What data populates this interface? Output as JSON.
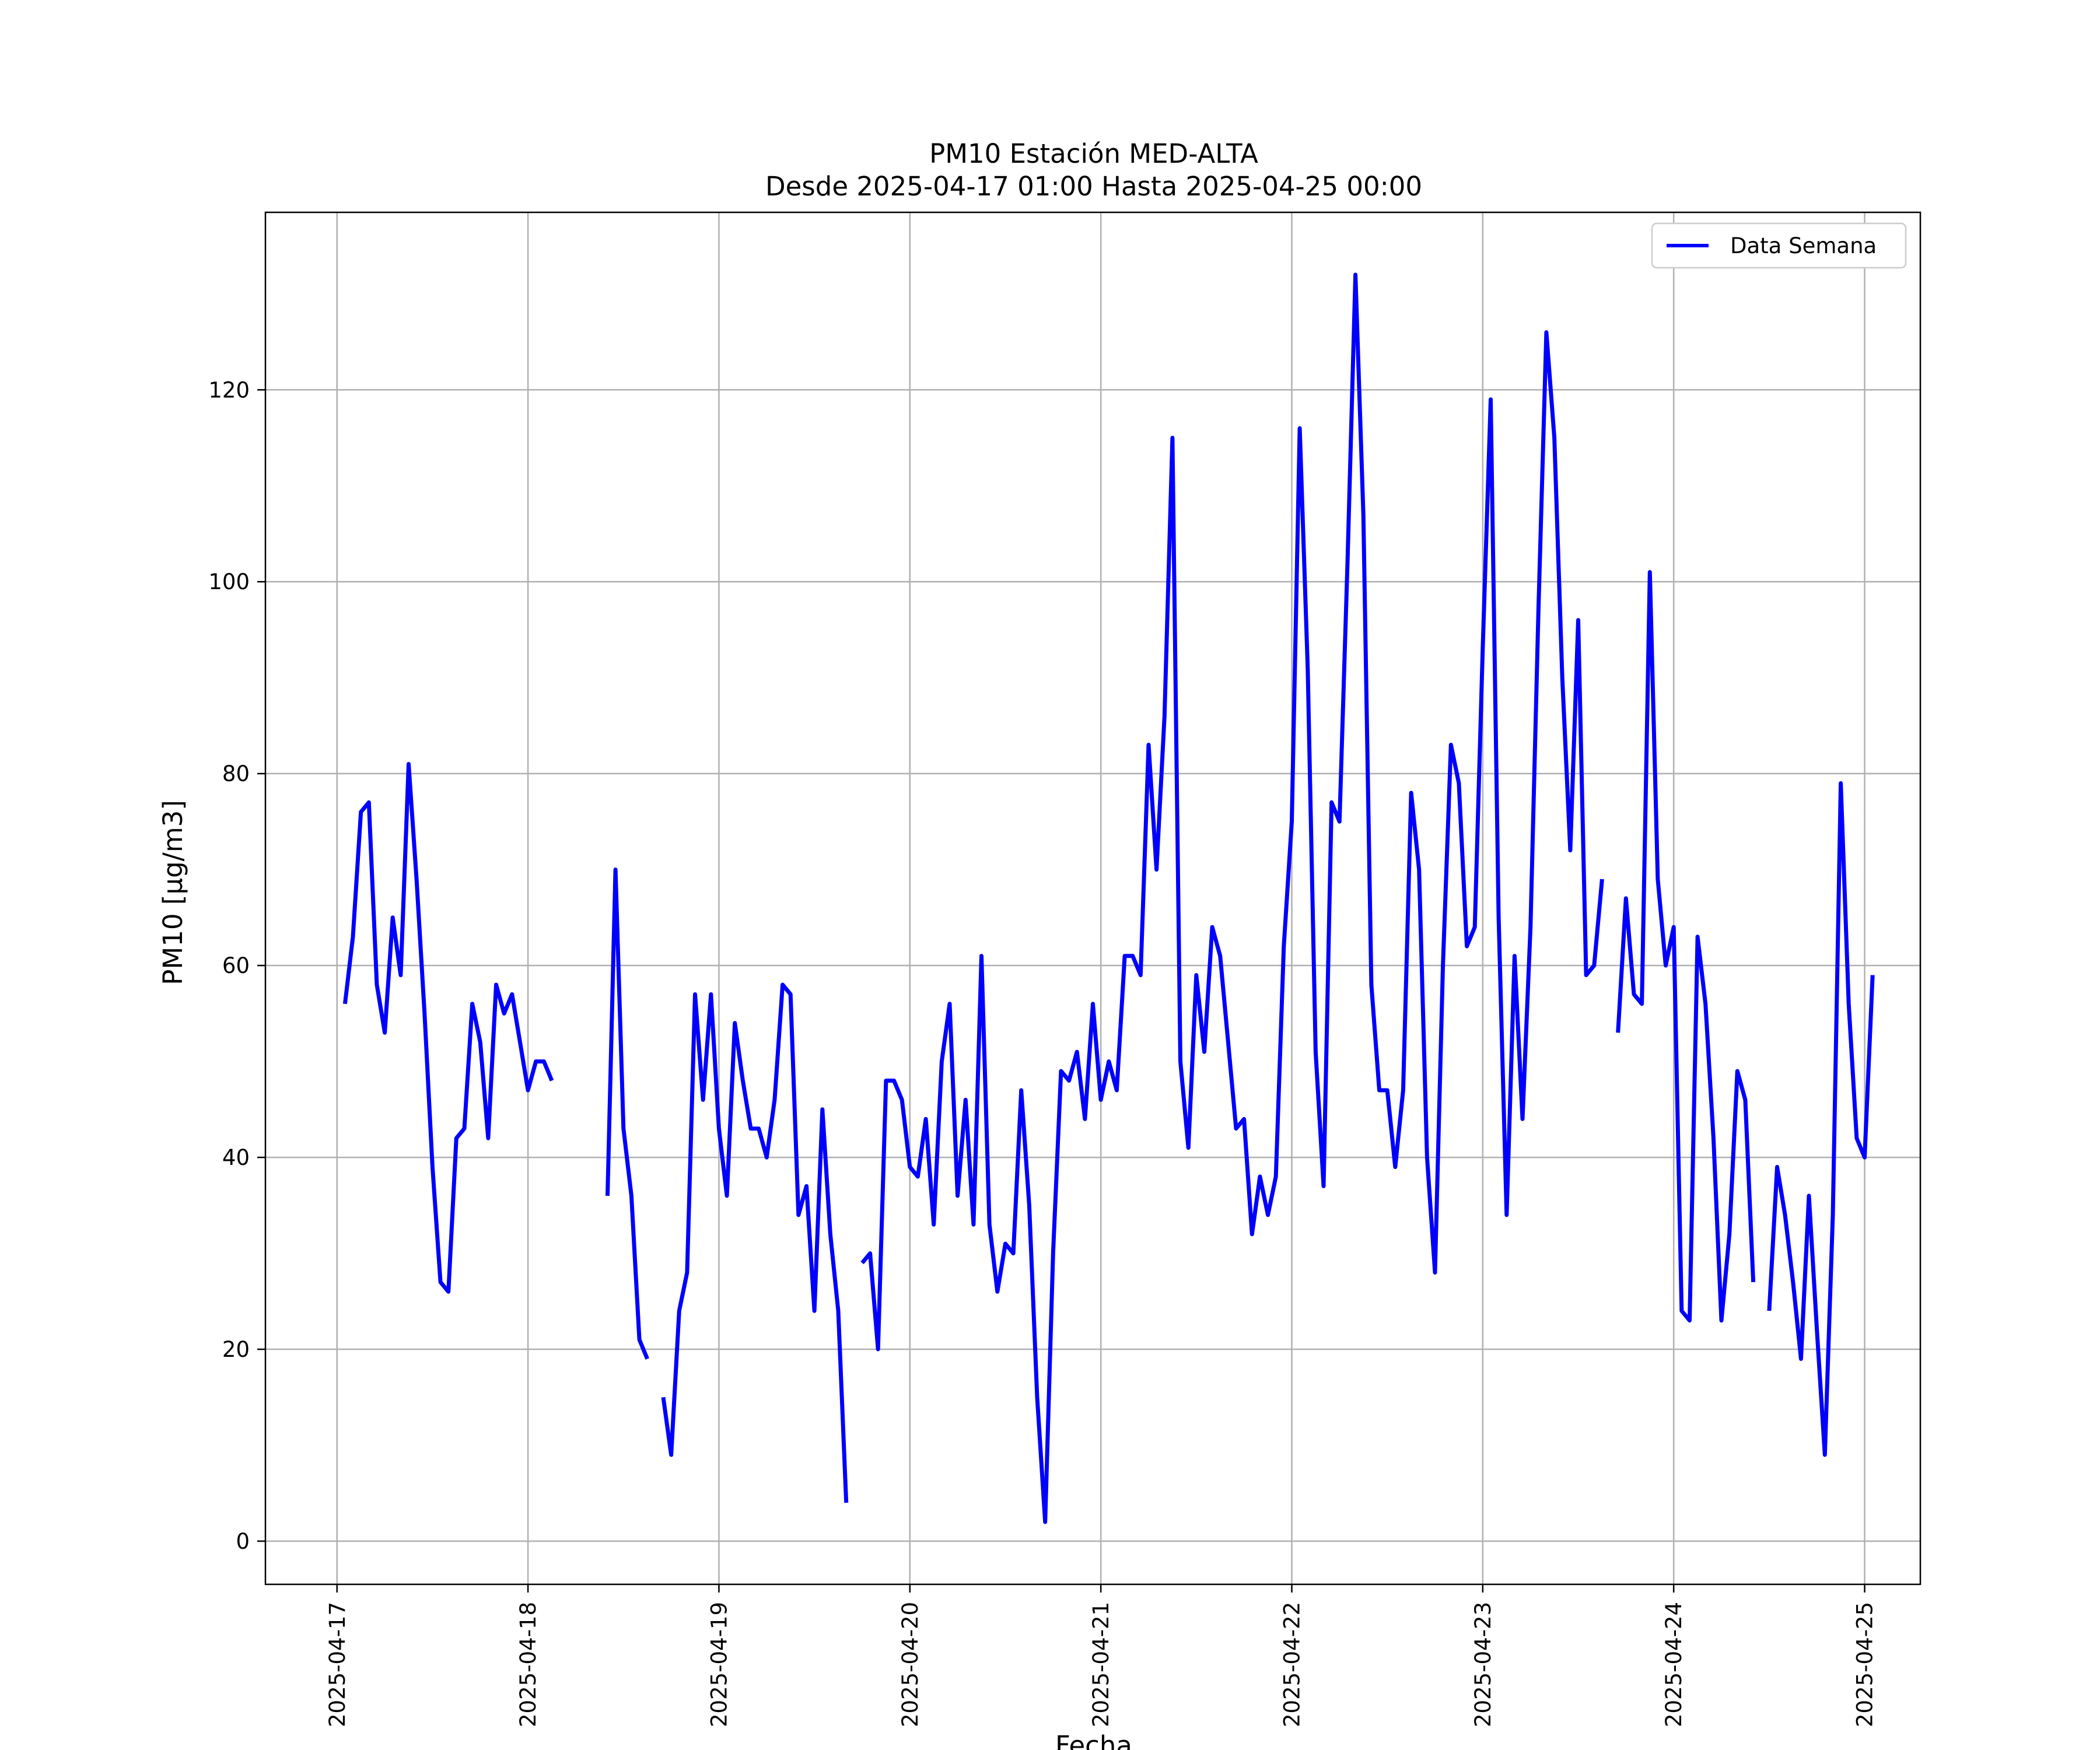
{
  "chart_data": {
    "type": "line",
    "title": "PM10 Estación MED-ALTA",
    "subtitle": "Desde 2025-04-17 01:00 Hasta 2025-04-25 00:00",
    "xlabel": "Fecha",
    "ylabel": "PM10 [μg/m3]",
    "grid": true,
    "legend_position": "top-right",
    "xlim": [
      "2025-04-16 15:00",
      "2025-04-25 07:00"
    ],
    "ylim": [
      -4.5,
      138.5
    ],
    "x_ticks": [
      "2025-04-17",
      "2025-04-18",
      "2025-04-19",
      "2025-04-20",
      "2025-04-21",
      "2025-04-22",
      "2025-04-23",
      "2025-04-24",
      "2025-04-25"
    ],
    "y_ticks": [
      0,
      20,
      40,
      60,
      80,
      100,
      120
    ],
    "series": [
      {
        "name": "Data Semana",
        "color": "#0000ff",
        "start": "2025-04-17 01:00",
        "interval_hours": 1,
        "values": [
          56,
          63,
          76,
          77,
          58,
          53,
          65,
          59,
          81,
          69,
          55,
          39,
          27,
          26,
          42,
          43,
          56,
          52,
          42,
          58,
          55,
          57,
          52,
          47,
          50,
          50,
          48,
          null,
          null,
          null,
          null,
          null,
          null,
          36,
          70,
          43,
          36,
          21,
          19,
          null,
          15,
          9,
          24,
          28,
          57,
          46,
          57,
          43,
          36,
          54,
          48,
          43,
          43,
          40,
          46,
          58,
          57,
          34,
          37,
          24,
          45,
          32,
          24,
          4,
          null,
          29,
          30,
          20,
          48,
          48,
          46,
          39,
          38,
          44,
          33,
          50,
          56,
          36,
          46,
          33,
          61,
          33,
          26,
          31,
          30,
          47,
          35,
          15,
          2,
          30,
          49,
          48,
          51,
          44,
          56,
          46,
          50,
          47,
          61,
          61,
          59,
          83,
          70,
          86,
          115,
          50,
          41,
          59,
          51,
          64,
          61,
          52,
          43,
          44,
          32,
          38,
          34,
          38,
          62,
          75,
          116,
          91,
          51,
          37,
          77,
          75,
          102,
          132,
          107,
          58,
          47,
          47,
          39,
          47,
          78,
          70,
          40,
          28,
          60,
          83,
          79,
          62,
          64,
          93,
          119,
          65,
          34,
          61,
          44,
          64,
          97,
          126,
          115,
          90,
          72,
          96,
          59,
          60,
          69,
          null,
          53,
          67,
          57,
          56,
          101,
          69,
          60,
          64,
          24,
          23,
          63,
          56,
          42,
          23,
          32,
          49,
          46,
          27,
          null,
          24,
          39,
          34,
          27,
          19,
          36,
          22,
          9,
          34,
          79,
          56,
          42,
          40,
          59
        ]
      }
    ]
  }
}
